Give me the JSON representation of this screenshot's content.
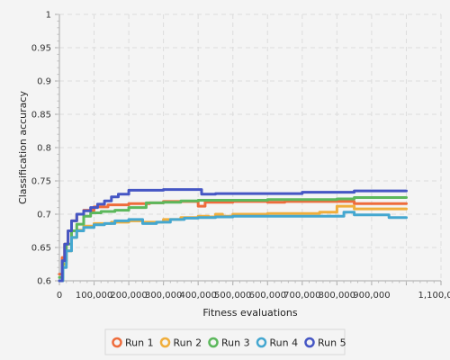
{
  "chart_data": {
    "type": "line",
    "title": "",
    "xlabel": "Fitness evaluations",
    "ylabel": "Classification accuracy",
    "xlim": [
      0,
      1100000
    ],
    "ylim": [
      0.6,
      1.0
    ],
    "x_ticks": [
      0,
      100000,
      200000,
      300000,
      400000,
      500000,
      600000,
      700000,
      800000,
      900000,
      1000000,
      1100000
    ],
    "x_tick_labels": [
      "0",
      "100,000",
      "200,000",
      "300,000",
      "400,000",
      "500,000",
      "600,000",
      "700,000",
      "800,000",
      "900,000",
      "",
      "1,100,000"
    ],
    "y_ticks": [
      0.6,
      0.65,
      0.7,
      0.75,
      0.8,
      0.85,
      0.9,
      0.95,
      1.0
    ],
    "y_tick_labels": [
      "0.6",
      "0.65",
      "0.7",
      "0.75",
      "0.8",
      "0.85",
      "0.9",
      "0.95",
      "1"
    ],
    "grid": true,
    "legend_position": "bottom",
    "series": [
      {
        "name": "Run 1",
        "color": "#ee6c3c",
        "x": [
          0,
          8000,
          15000,
          25000,
          35000,
          50000,
          70000,
          100000,
          140000,
          200000,
          260000,
          300000,
          380000,
          400000,
          420000,
          500000,
          600000,
          650000,
          700000,
          800000,
          850000,
          1000000
        ],
        "y": [
          0.61,
          0.635,
          0.655,
          0.675,
          0.69,
          0.7,
          0.706,
          0.711,
          0.714,
          0.716,
          0.717,
          0.719,
          0.719,
          0.712,
          0.718,
          0.719,
          0.718,
          0.719,
          0.719,
          0.719,
          0.716,
          0.716
        ]
      },
      {
        "name": "Run 2",
        "color": "#f0ae3b",
        "x": [
          0,
          10000,
          20000,
          35000,
          50000,
          70000,
          100000,
          150000,
          200000,
          240000,
          300000,
          350000,
          400000,
          430000,
          450000,
          470000,
          500000,
          600000,
          700000,
          750000,
          800000,
          850000,
          1000000
        ],
        "y": [
          0.6,
          0.625,
          0.645,
          0.665,
          0.676,
          0.682,
          0.686,
          0.688,
          0.69,
          0.688,
          0.692,
          0.695,
          0.697,
          0.696,
          0.7,
          0.697,
          0.7,
          0.701,
          0.701,
          0.703,
          0.712,
          0.708,
          0.708
        ]
      },
      {
        "name": "Run 3",
        "color": "#5cb85c",
        "x": [
          0,
          10000,
          20000,
          35000,
          50000,
          70000,
          90000,
          120000,
          160000,
          200000,
          250000,
          300000,
          350000,
          400000,
          500000,
          600000,
          700000,
          800000,
          850000,
          1000000
        ],
        "y": [
          0.605,
          0.63,
          0.655,
          0.675,
          0.685,
          0.697,
          0.702,
          0.704,
          0.706,
          0.71,
          0.717,
          0.718,
          0.72,
          0.721,
          0.721,
          0.722,
          0.722,
          0.723,
          0.725,
          0.725
        ]
      },
      {
        "name": "Run 4",
        "color": "#44a7d0",
        "x": [
          0,
          10000,
          20000,
          35000,
          50000,
          70000,
          100000,
          130000,
          160000,
          200000,
          240000,
          280000,
          320000,
          360000,
          400000,
          450000,
          500000,
          600000,
          700000,
          800000,
          820000,
          850000,
          950000,
          1000000
        ],
        "y": [
          0.6,
          0.62,
          0.645,
          0.665,
          0.675,
          0.68,
          0.684,
          0.686,
          0.69,
          0.692,
          0.686,
          0.688,
          0.692,
          0.694,
          0.695,
          0.696,
          0.697,
          0.697,
          0.697,
          0.697,
          0.703,
          0.699,
          0.695,
          0.695
        ]
      },
      {
        "name": "Run 5",
        "color": "#4556c4",
        "x": [
          0,
          8000,
          15000,
          25000,
          35000,
          50000,
          70000,
          90000,
          110000,
          130000,
          150000,
          170000,
          200000,
          300000,
          400000,
          410000,
          450000,
          550000,
          650000,
          700000,
          800000,
          850000,
          1000000
        ],
        "y": [
          0.6,
          0.63,
          0.655,
          0.675,
          0.69,
          0.7,
          0.705,
          0.71,
          0.715,
          0.72,
          0.726,
          0.73,
          0.736,
          0.737,
          0.737,
          0.73,
          0.731,
          0.731,
          0.731,
          0.733,
          0.733,
          0.735,
          0.735
        ]
      }
    ]
  }
}
